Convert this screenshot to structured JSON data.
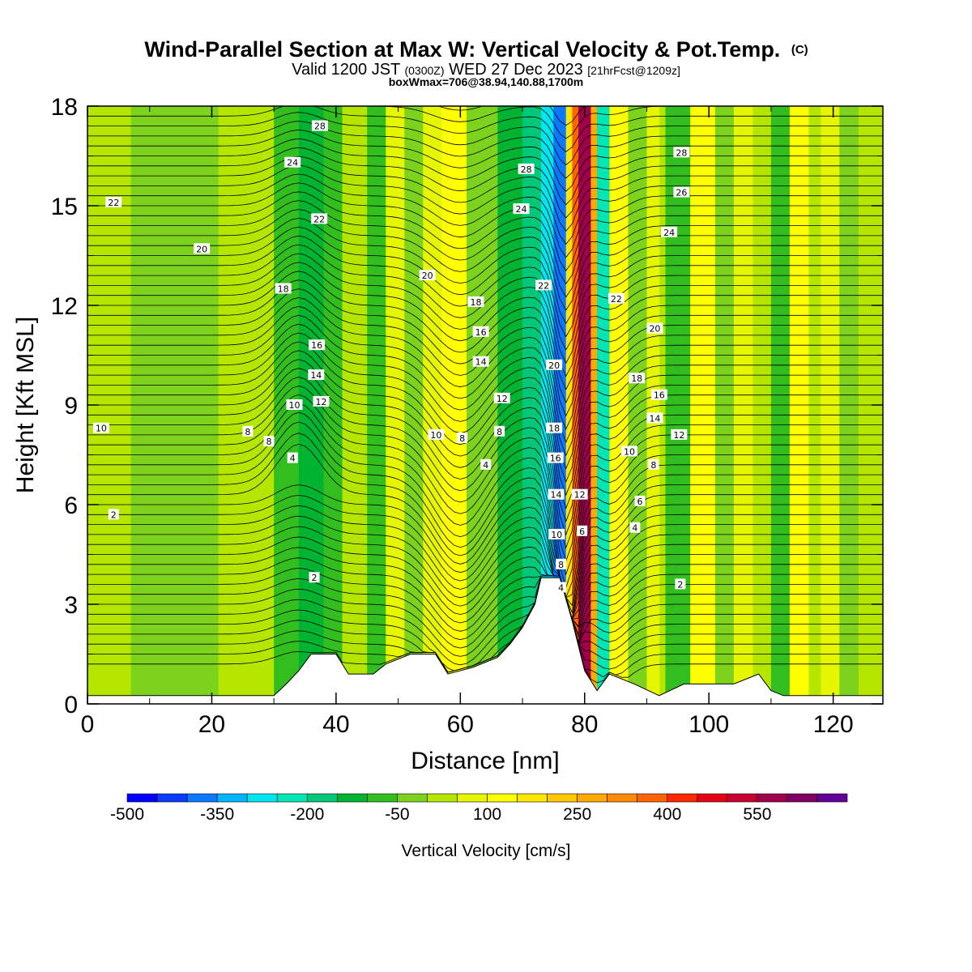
{
  "title_main": "Wind-Parallel Section at Max W: Vertical Velocity & Pot.Temp.",
  "title_main_suffix": "(C)",
  "title_valid_a": "Valid 1200 JST",
  "title_valid_b": "(0300Z)",
  "title_valid_c": "WED 27 Dec 2023",
  "title_valid_d": "[21hrFcst@1209z]",
  "title_box": "boxWmax=706@38.94,140.88,1700m",
  "chart_data": {
    "type": "heatmap",
    "xlabel": "Distance [nm]",
    "ylabel": "Height [Kft MSL]",
    "xlim": [
      0,
      128
    ],
    "ylim": [
      0,
      18
    ],
    "x_ticks": [
      0,
      20,
      40,
      60,
      80,
      100,
      120
    ],
    "y_ticks": [
      0,
      3,
      6,
      9,
      12,
      15,
      18
    ],
    "colorbar": {
      "label": "Vertical Velocity [cm/s]",
      "tick_labels": [
        "-500",
        "-350",
        "-200",
        "-50",
        "100",
        "250",
        "400",
        "550"
      ],
      "tick_values": [
        -500,
        -350,
        -200,
        -50,
        100,
        250,
        400,
        550
      ],
      "bins": [
        {
          "min": -500,
          "max": -450,
          "color": "#0000ff"
        },
        {
          "min": -450,
          "max": -400,
          "color": "#0a3cff"
        },
        {
          "min": -400,
          "max": -350,
          "color": "#0a78ff"
        },
        {
          "min": -350,
          "max": -300,
          "color": "#00b4ff"
        },
        {
          "min": -300,
          "max": -250,
          "color": "#00e6f0"
        },
        {
          "min": -250,
          "max": -200,
          "color": "#00e6b4"
        },
        {
          "min": -200,
          "max": -150,
          "color": "#00c878"
        },
        {
          "min": -150,
          "max": -100,
          "color": "#00b432"
        },
        {
          "min": -100,
          "max": -50,
          "color": "#32be1e"
        },
        {
          "min": -50,
          "max": 0,
          "color": "#7dd21e"
        },
        {
          "min": 0,
          "max": 50,
          "color": "#b4e600"
        },
        {
          "min": 50,
          "max": 100,
          "color": "#e6f500"
        },
        {
          "min": 100,
          "max": 150,
          "color": "#ffff00"
        },
        {
          "min": 150,
          "max": 200,
          "color": "#ffe600"
        },
        {
          "min": 200,
          "max": 250,
          "color": "#ffc800"
        },
        {
          "min": 250,
          "max": 300,
          "color": "#ffaa00"
        },
        {
          "min": 300,
          "max": 350,
          "color": "#ff8c00"
        },
        {
          "min": 350,
          "max": 400,
          "color": "#ff6400"
        },
        {
          "min": 400,
          "max": 450,
          "color": "#ff2800"
        },
        {
          "min": 450,
          "max": 500,
          "color": "#e60014"
        },
        {
          "min": 500,
          "max": 550,
          "color": "#c80032"
        },
        {
          "min": 550,
          "max": 600,
          "color": "#a0004b"
        },
        {
          "min": 600,
          "max": 650,
          "color": "#820064"
        },
        {
          "min": 650,
          "max": 700,
          "color": "#640096"
        }
      ]
    },
    "velocity_bands": [
      {
        "x": 0,
        "w": 128,
        "value": 20
      },
      {
        "x": 7,
        "w": 14,
        "value": -20
      },
      {
        "x": 30,
        "w": 4,
        "value": -90
      },
      {
        "x": 34,
        "w": 5,
        "value": -120
      },
      {
        "x": 38,
        "w": 3,
        "value": -60
      },
      {
        "x": 41,
        "w": 4,
        "value": 40
      },
      {
        "x": 45,
        "w": 4,
        "value": -80
      },
      {
        "x": 48,
        "w": 4,
        "value": 90
      },
      {
        "x": 51,
        "w": 3,
        "value": -10
      },
      {
        "x": 54,
        "w": 3,
        "value": 80
      },
      {
        "x": 57,
        "w": 4,
        "value": 130
      },
      {
        "x": 61,
        "w": 5,
        "value": -40
      },
      {
        "x": 66,
        "w": 4,
        "value": -120
      },
      {
        "x": 70,
        "w": 3,
        "value": -170
      },
      {
        "x": 73,
        "w": 2,
        "value": -260
      },
      {
        "x": 75,
        "w": 2,
        "value": -400
      },
      {
        "x": 77,
        "w": 1,
        "value": 160
      },
      {
        "x": 78,
        "w": 1,
        "value": 380
      },
      {
        "x": 79,
        "w": 2,
        "value": 560
      },
      {
        "x": 81,
        "w": 1,
        "value": 280
      },
      {
        "x": 82,
        "w": 2,
        "value": -230
      },
      {
        "x": 84,
        "w": 3,
        "value": 110
      },
      {
        "x": 87,
        "w": 3,
        "value": -40
      },
      {
        "x": 90,
        "w": 2,
        "value": 80
      },
      {
        "x": 93,
        "w": 4,
        "value": -60
      },
      {
        "x": 97,
        "w": 4,
        "value": 120
      },
      {
        "x": 101,
        "w": 3,
        "value": -40
      },
      {
        "x": 104,
        "w": 3,
        "value": 60
      },
      {
        "x": 110,
        "w": 3,
        "value": -60
      },
      {
        "x": 113,
        "w": 3,
        "value": 110
      },
      {
        "x": 118,
        "w": 3,
        "value": 50
      },
      {
        "x": 121,
        "w": 3,
        "value": -40
      }
    ],
    "terrain": [
      [
        0,
        0.25
      ],
      [
        30,
        0.25
      ],
      [
        32,
        0.6
      ],
      [
        34,
        1.0
      ],
      [
        36,
        1.5
      ],
      [
        40,
        1.5
      ],
      [
        42,
        0.9
      ],
      [
        46,
        0.9
      ],
      [
        48,
        1.2
      ],
      [
        52,
        1.5
      ],
      [
        56,
        1.5
      ],
      [
        58,
        0.9
      ],
      [
        62,
        1.1
      ],
      [
        66,
        1.4
      ],
      [
        68,
        1.8
      ],
      [
        70,
        2.3
      ],
      [
        72,
        3.0
      ],
      [
        73,
        3.8
      ],
      [
        76,
        3.8
      ],
      [
        78,
        2.5
      ],
      [
        80,
        1.0
      ],
      [
        82,
        0.4
      ],
      [
        84,
        0.9
      ],
      [
        88,
        0.6
      ],
      [
        92,
        0.25
      ],
      [
        96,
        0.6
      ],
      [
        104,
        0.6
      ],
      [
        108,
        0.9
      ],
      [
        110,
        0.4
      ],
      [
        112,
        0.25
      ],
      [
        128,
        0.25
      ]
    ],
    "theta_contour_labels": [
      {
        "text": "28",
        "x": 37.4,
        "y": 17.4
      },
      {
        "text": "24",
        "x": 33.0,
        "y": 16.3
      },
      {
        "text": "22",
        "x": 37.3,
        "y": 14.6
      },
      {
        "text": "22",
        "x": 4.2,
        "y": 15.1
      },
      {
        "text": "20",
        "x": 18.4,
        "y": 13.7
      },
      {
        "text": "18",
        "x": 31.5,
        "y": 12.5
      },
      {
        "text": "16",
        "x": 36.9,
        "y": 10.8
      },
      {
        "text": "14",
        "x": 36.8,
        "y": 9.9
      },
      {
        "text": "12",
        "x": 37.6,
        "y": 9.1
      },
      {
        "text": "10",
        "x": 33.3,
        "y": 9.0
      },
      {
        "text": "10",
        "x": 2.2,
        "y": 8.3
      },
      {
        "text": "8",
        "x": 25.8,
        "y": 8.2
      },
      {
        "text": "8",
        "x": 29.2,
        "y": 7.9
      },
      {
        "text": "4",
        "x": 33.0,
        "y": 7.4
      },
      {
        "text": "2",
        "x": 4.2,
        "y": 5.7
      },
      {
        "text": "2",
        "x": 36.5,
        "y": 3.8
      },
      {
        "text": "20",
        "x": 54.7,
        "y": 12.9
      },
      {
        "text": "18",
        "x": 62.5,
        "y": 12.1
      },
      {
        "text": "16",
        "x": 63.3,
        "y": 11.2
      },
      {
        "text": "14",
        "x": 63.3,
        "y": 10.3
      },
      {
        "text": "12",
        "x": 66.7,
        "y": 9.2
      },
      {
        "text": "10",
        "x": 56.1,
        "y": 8.1
      },
      {
        "text": "8",
        "x": 60.3,
        "y": 8.0
      },
      {
        "text": "8",
        "x": 66.3,
        "y": 8.2
      },
      {
        "text": "4",
        "x": 64.1,
        "y": 7.2
      },
      {
        "text": "28",
        "x": 70.6,
        "y": 16.1
      },
      {
        "text": "24",
        "x": 69.8,
        "y": 14.9
      },
      {
        "text": "22",
        "x": 73.4,
        "y": 12.6
      },
      {
        "text": "20",
        "x": 75.1,
        "y": 10.2
      },
      {
        "text": "18",
        "x": 75.1,
        "y": 8.3
      },
      {
        "text": "16",
        "x": 75.3,
        "y": 7.4
      },
      {
        "text": "14",
        "x": 75.4,
        "y": 6.3
      },
      {
        "text": "10",
        "x": 75.5,
        "y": 5.1
      },
      {
        "text": "8",
        "x": 76.2,
        "y": 4.2
      },
      {
        "text": "4",
        "x": 76.2,
        "y": 3.5
      },
      {
        "text": "12",
        "x": 79.2,
        "y": 6.3
      },
      {
        "text": "6",
        "x": 79.6,
        "y": 5.2
      },
      {
        "text": "28",
        "x": 95.6,
        "y": 16.6
      },
      {
        "text": "26",
        "x": 95.6,
        "y": 15.4
      },
      {
        "text": "24",
        "x": 93.6,
        "y": 14.2
      },
      {
        "text": "22",
        "x": 85.1,
        "y": 12.2
      },
      {
        "text": "20",
        "x": 91.3,
        "y": 11.3
      },
      {
        "text": "18",
        "x": 88.4,
        "y": 9.8
      },
      {
        "text": "16",
        "x": 92.0,
        "y": 9.3
      },
      {
        "text": "14",
        "x": 91.3,
        "y": 8.6
      },
      {
        "text": "12",
        "x": 95.2,
        "y": 8.1
      },
      {
        "text": "10",
        "x": 87.2,
        "y": 7.6
      },
      {
        "text": "8",
        "x": 91.1,
        "y": 7.2
      },
      {
        "text": "6",
        "x": 88.9,
        "y": 6.1
      },
      {
        "text": "4",
        "x": 88.1,
        "y": 5.3
      },
      {
        "text": "2",
        "x": 95.4,
        "y": 3.6
      }
    ]
  },
  "colors": {
    "ink": "#000000",
    "background": "#ffffff",
    "terrain": "#ffffff"
  }
}
